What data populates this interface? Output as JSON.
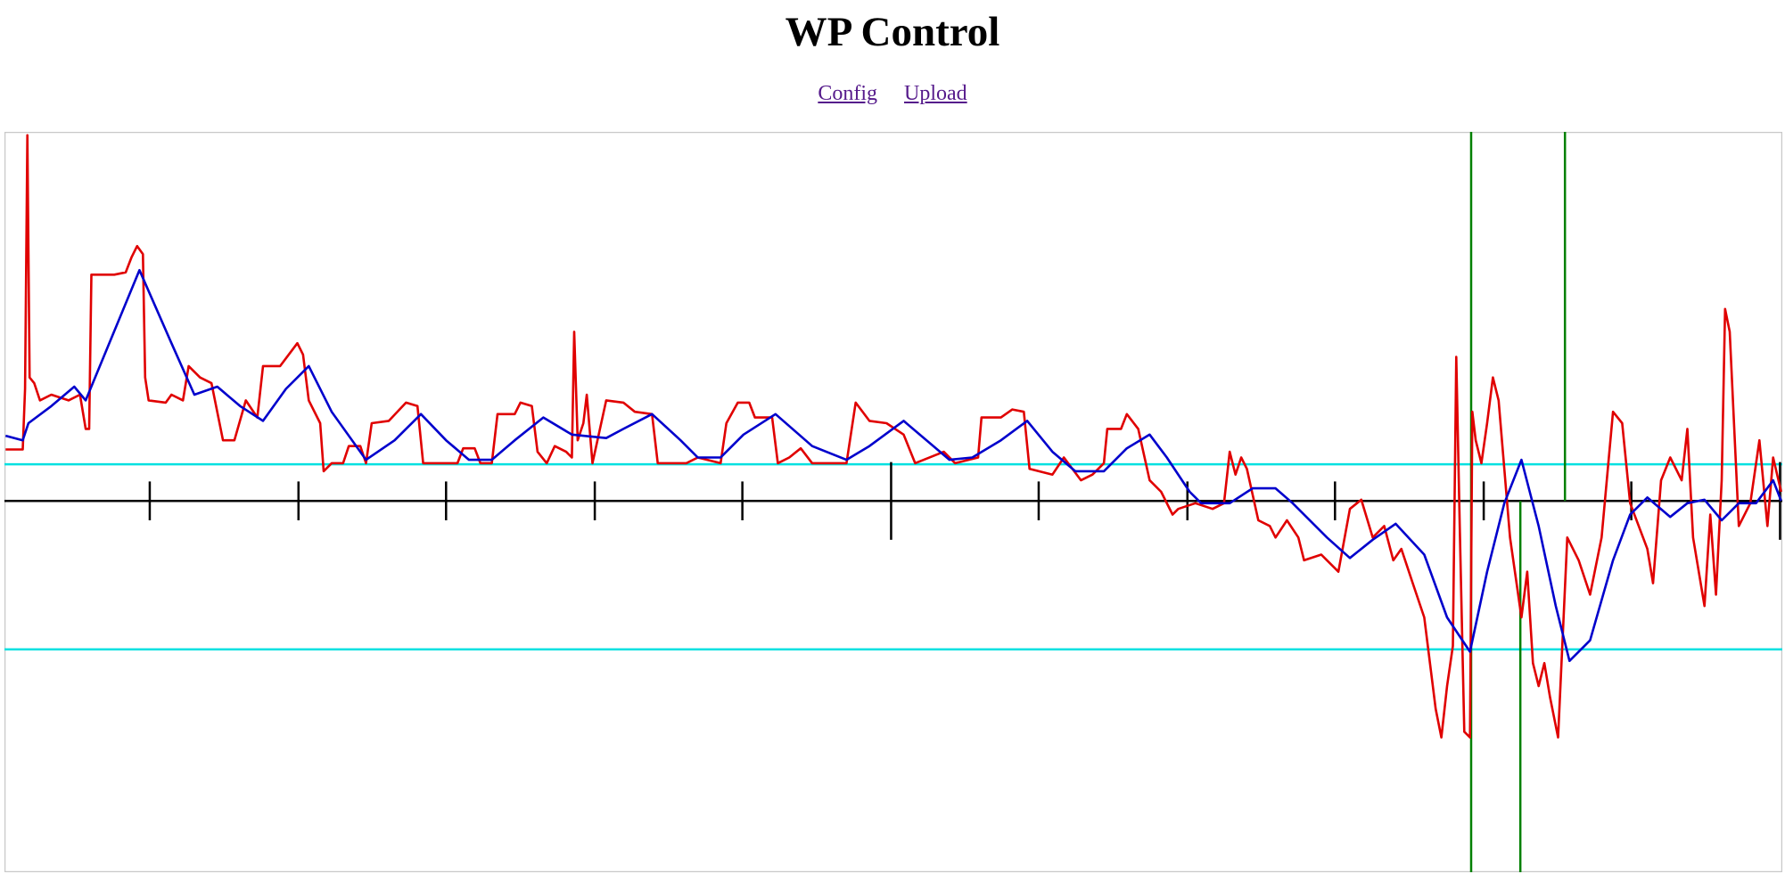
{
  "header": {
    "title": "WP Control",
    "links": [
      "Config",
      "Upload"
    ]
  },
  "chart_data": {
    "type": "line",
    "xlim": [
      4,
      1558
    ],
    "ylim": [
      -325,
      323
    ],
    "xticks": [
      131,
      261,
      390,
      520,
      649,
      779,
      908,
      1038,
      1167,
      1297,
      1426,
      1556
    ],
    "xticks_major": [
      779,
      1556
    ],
    "hlines": [
      {
        "y": 0,
        "color": "#000000"
      },
      {
        "y": 32,
        "color": "#00e0e0"
      },
      {
        "y": -130,
        "color": "#00e0e0"
      }
    ],
    "vlines": [
      {
        "x": 1286,
        "top": 323,
        "bottom": -325,
        "color": "#008000"
      },
      {
        "x": 1368,
        "top": 323,
        "bottom": 0,
        "color": "#008000"
      },
      {
        "x": 1329,
        "top": 0,
        "bottom": -325,
        "color": "#008000"
      }
    ],
    "series": [
      {
        "color": "#e00000",
        "x": [
          5,
          20,
          22,
          24,
          26,
          30,
          35,
          45,
          60,
          70,
          75,
          78,
          80,
          100,
          110,
          115,
          120,
          125,
          127,
          130,
          145,
          150,
          160,
          165,
          175,
          185,
          195,
          205,
          215,
          225,
          230,
          245,
          260,
          265,
          270,
          280,
          283,
          290,
          300,
          305,
          315,
          320,
          325,
          340,
          355,
          365,
          370,
          400,
          405,
          415,
          420,
          430,
          435,
          450,
          455,
          465,
          470,
          478,
          485,
          495,
          500,
          502,
          505,
          510,
          513,
          518,
          530,
          545,
          555,
          570,
          575,
          600,
          610,
          630,
          635,
          645,
          655,
          660,
          675,
          680,
          690,
          700,
          710,
          740,
          748,
          760,
          775,
          790,
          800,
          825,
          835,
          855,
          858,
          875,
          885,
          895,
          900,
          920,
          930,
          945,
          955,
          965,
          968,
          980,
          985,
          995,
          1005,
          1015,
          1025,
          1030,
          1045,
          1060,
          1070,
          1075,
          1080,
          1085,
          1090,
          1100,
          1110,
          1115,
          1125,
          1135,
          1140,
          1155,
          1160,
          1170,
          1180,
          1190,
          1200,
          1210,
          1218,
          1225,
          1235,
          1245,
          1250,
          1255,
          1260,
          1265,
          1270,
          1273,
          1276,
          1280,
          1285,
          1287,
          1290,
          1295,
          1300,
          1305,
          1310,
          1320,
          1330,
          1335,
          1340,
          1345,
          1350,
          1355,
          1362,
          1370,
          1380,
          1390,
          1400,
          1410,
          1418,
          1425,
          1440,
          1445,
          1452,
          1460,
          1470,
          1475,
          1480,
          1490,
          1495,
          1500,
          1505,
          1508,
          1512,
          1520,
          1530,
          1538,
          1545,
          1550,
          1557
        ],
        "values": [
          45,
          45,
          98,
          320,
          108,
          103,
          88,
          93,
          88,
          93,
          63,
          63,
          198,
          198,
          200,
          213,
          223,
          216,
          108,
          88,
          86,
          93,
          88,
          118,
          108,
          103,
          53,
          53,
          88,
          73,
          118,
          118,
          138,
          128,
          88,
          68,
          26,
          33,
          33,
          48,
          48,
          33,
          68,
          70,
          86,
          83,
          33,
          33,
          46,
          46,
          33,
          33,
          76,
          76,
          86,
          83,
          43,
          33,
          48,
          43,
          38,
          148,
          53,
          68,
          93,
          33,
          88,
          86,
          78,
          76,
          33,
          33,
          38,
          33,
          68,
          86,
          86,
          73,
          73,
          33,
          38,
          46,
          33,
          33,
          86,
          70,
          68,
          58,
          33,
          43,
          33,
          38,
          73,
          73,
          80,
          78,
          28,
          23,
          38,
          18,
          23,
          33,
          63,
          63,
          76,
          63,
          18,
          8,
          -12,
          -7,
          -2,
          -7,
          -2,
          43,
          23,
          38,
          28,
          -17,
          -22,
          -32,
          -17,
          -32,
          -52,
          -47,
          -52,
          -62,
          -7,
          1,
          -32,
          -22,
          -52,
          -42,
          -72,
          -102,
          -142,
          -182,
          -207,
          -162,
          -127,
          126,
          -22,
          -202,
          -207,
          78,
          53,
          33,
          68,
          108,
          88,
          -32,
          -102,
          -62,
          -142,
          -162,
          -142,
          -172,
          -207,
          -32,
          -52,
          -82,
          -32,
          78,
          68,
          -2,
          -42,
          -72,
          18,
          38,
          18,
          63,
          -32,
          -92,
          -12,
          -82,
          18,
          168,
          148,
          -22,
          -2,
          53,
          -22,
          38,
          8
        ]
      },
      {
        "color": "#0000cc",
        "x": [
          5,
          20,
          25,
          45,
          65,
          75,
          122,
          150,
          170,
          190,
          210,
          230,
          250,
          270,
          290,
          320,
          345,
          368,
          390,
          410,
          430,
          450,
          475,
          500,
          530,
          545,
          570,
          595,
          610,
          630,
          650,
          678,
          710,
          740,
          760,
          790,
          830,
          850,
          875,
          898,
          920,
          940,
          965,
          985,
          1005,
          1020,
          1040,
          1050,
          1075,
          1095,
          1115,
          1130,
          1160,
          1180,
          1200,
          1220,
          1245,
          1265,
          1285,
          1300,
          1315,
          1330,
          1345,
          1360,
          1372,
          1390,
          1410,
          1425,
          1440,
          1460,
          1475,
          1490,
          1505,
          1520,
          1535,
          1550,
          1557
        ],
        "values": [
          57,
          53,
          68,
          83,
          100,
          88,
          202,
          138,
          93,
          100,
          83,
          70,
          98,
          118,
          78,
          36,
          53,
          76,
          53,
          36,
          36,
          53,
          73,
          58,
          55,
          63,
          76,
          53,
          38,
          38,
          58,
          76,
          48,
          36,
          48,
          70,
          36,
          38,
          53,
          70,
          43,
          26,
          26,
          46,
          58,
          38,
          8,
          -2,
          -2,
          11,
          11,
          -2,
          -32,
          -50,
          -34,
          -20,
          -47,
          -102,
          -132,
          -62,
          -2,
          36,
          -22,
          -92,
          -140,
          -122,
          -52,
          -12,
          3,
          -14,
          -2,
          1,
          -17,
          -2,
          -2,
          18,
          0
        ]
      }
    ]
  }
}
